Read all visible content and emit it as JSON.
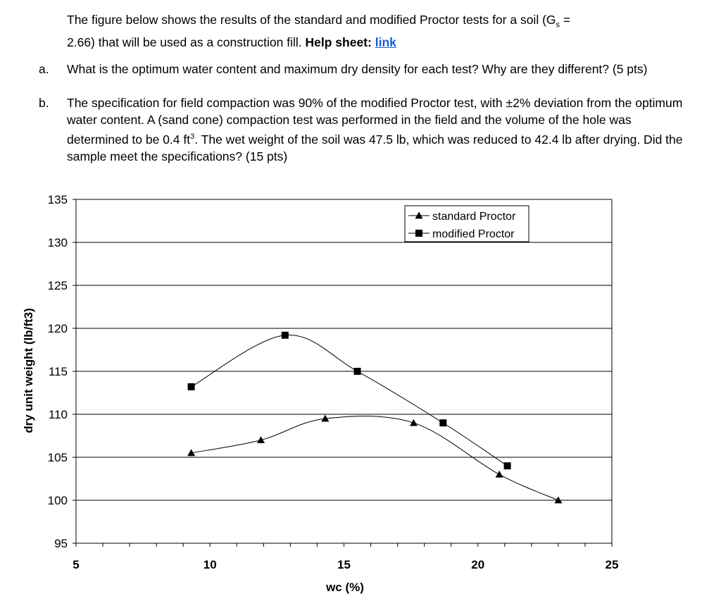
{
  "problem": {
    "intro_line1_pre": "The figure below shows the results of the standard and modified Proctor tests for a soil (G",
    "intro_sub": "s",
    "intro_line1_post": " =",
    "intro_line2_pre": "2.66) that will be used as a construction fill. ",
    "help_label": "Help sheet: ",
    "help_link": "link",
    "part_a_label": "a.",
    "part_a_text": "What is the optimum water content and maximum dry density for each test? Why are they different? (5 pts)",
    "part_b_label": "b.",
    "part_b_pre": "The specification for field compaction was 90% of the modified Proctor test, with ±2% deviation from the optimum water content. A (sand cone) compaction test was performed in the field and the volume of the hole was determined to be 0.4 ft",
    "part_b_sup": "3",
    "part_b_post": ". The wet weight of the soil was 47.5 lb, which was reduced to 42.4 lb after drying. Did the sample meet the specifications? (15 pts)"
  },
  "chart_data": {
    "type": "line",
    "xlabel": "wc (%)",
    "ylabel": "dry unit weight (lb/ft3)",
    "xlim": [
      5,
      25
    ],
    "ylim": [
      95,
      135
    ],
    "x_ticks": [
      5,
      10,
      15,
      20,
      25
    ],
    "y_ticks": [
      95,
      100,
      105,
      110,
      115,
      120,
      125,
      130,
      135
    ],
    "grid": "horizontal",
    "legend_position": "top-right",
    "series": [
      {
        "name": "standard Proctor",
        "marker": "triangle",
        "x": [
          9.3,
          11.9,
          14.3,
          17.6,
          20.8,
          23.0
        ],
        "y": [
          105.5,
          107.0,
          109.5,
          109.0,
          103.0,
          100.0
        ]
      },
      {
        "name": "modified Proctor",
        "marker": "square",
        "x": [
          9.3,
          12.8,
          15.5,
          18.7,
          21.1
        ],
        "y": [
          113.2,
          119.2,
          115.0,
          109.0,
          104.0
        ]
      }
    ]
  }
}
